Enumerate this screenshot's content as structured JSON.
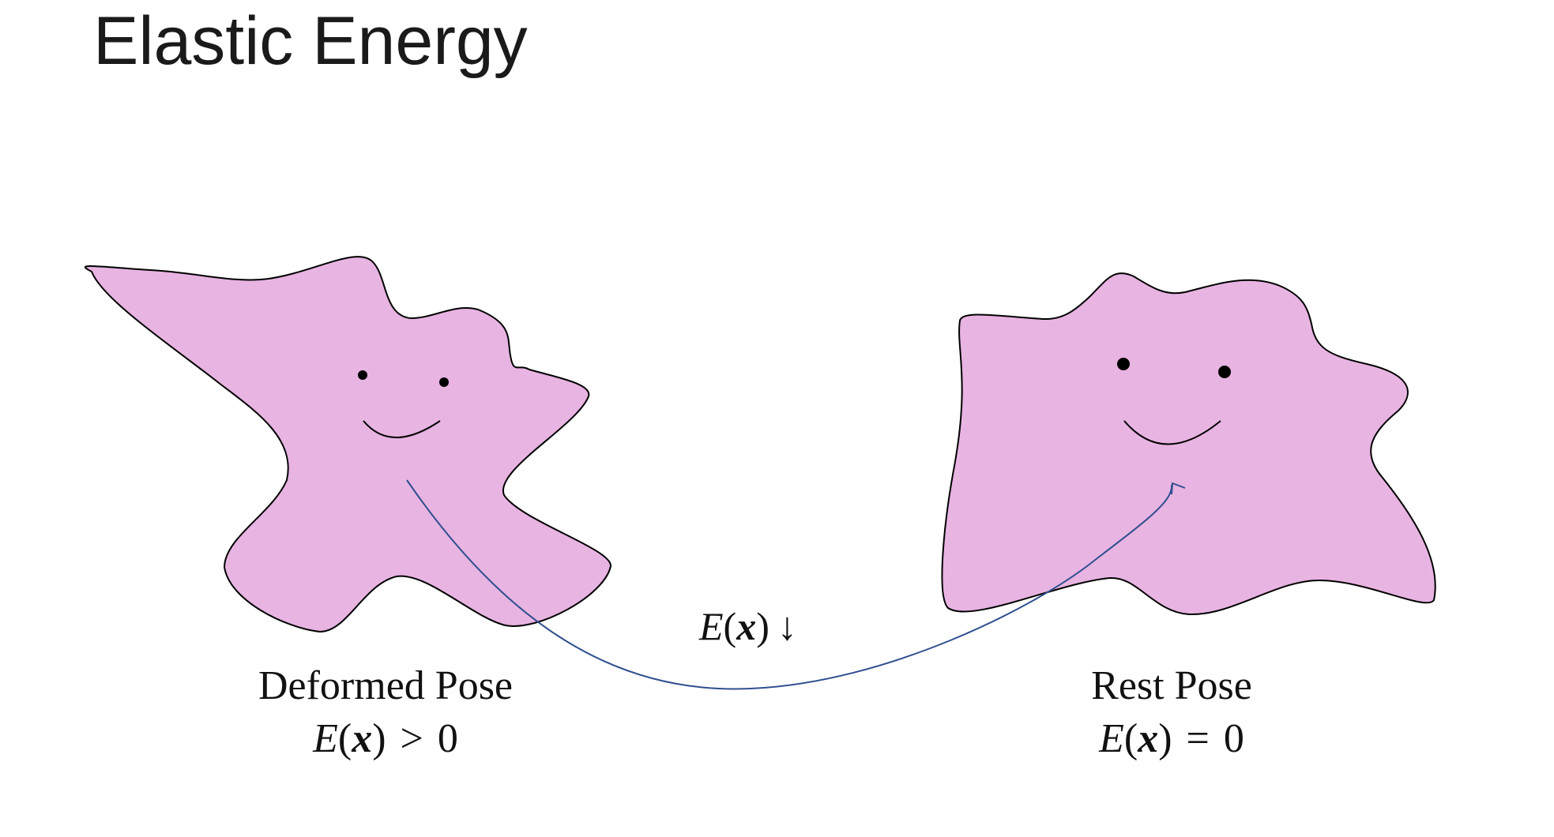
{
  "title": "Elastic Energy",
  "colors": {
    "blob_fill": "#E8B4E2",
    "outline": "#000000",
    "arrow": "#2F4F8F",
    "text": "#111111"
  },
  "deformed": {
    "caption": "Deformed Pose",
    "energy": {
      "E": "E",
      "lparen": "(",
      "x": "x",
      "rparen": ")",
      "relation": ">",
      "value": "0"
    }
  },
  "rest": {
    "caption": "Rest Pose",
    "energy": {
      "E": "E",
      "lparen": "(",
      "x": "x",
      "rparen": ")",
      "relation": "=",
      "value": "0"
    }
  },
  "transition": {
    "E": "E",
    "lparen": "(",
    "x": "x",
    "rparen": ")",
    "arrow": "↓"
  }
}
